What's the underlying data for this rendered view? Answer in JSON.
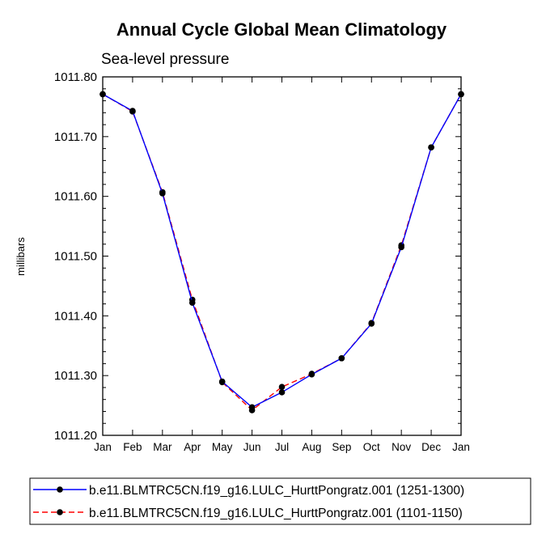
{
  "chart_data": {
    "type": "line",
    "title": "Annual Cycle Global Mean Climatology",
    "subtitle": "Sea-level pressure",
    "xlabel": "",
    "ylabel": "millibars",
    "categories": [
      "Jan",
      "Feb",
      "Mar",
      "Apr",
      "May",
      "Jun",
      "Jul",
      "Aug",
      "Sep",
      "Oct",
      "Nov",
      "Dec",
      "Jan"
    ],
    "ylim": [
      1011.2,
      1011.8
    ],
    "yticks": [
      "1011.20",
      "1011.30",
      "1011.40",
      "1011.50",
      "1011.60",
      "1011.70",
      "1011.80"
    ],
    "series": [
      {
        "name": "b.e11.BLMTRC5CN.f19_g16.LULC_HurttPongratz.001 (1251-1300)",
        "color": "#0000ff",
        "style": "solid",
        "values": [
          1011.771,
          1011.743,
          1011.605,
          1011.422,
          1011.29,
          1011.247,
          1011.272,
          1011.302,
          1011.329,
          1011.387,
          1011.515,
          1011.682,
          1011.771
        ]
      },
      {
        "name": "b.e11.BLMTRC5CN.f19_g16.LULC_HurttPongratz.001 (1101-1150)",
        "color": "#ff0000",
        "style": "dashed",
        "values": [
          1011.771,
          1011.742,
          1011.607,
          1011.427,
          1011.289,
          1011.242,
          1011.281,
          1011.303,
          1011.329,
          1011.388,
          1011.518,
          1011.682,
          1011.771
        ]
      }
    ]
  }
}
